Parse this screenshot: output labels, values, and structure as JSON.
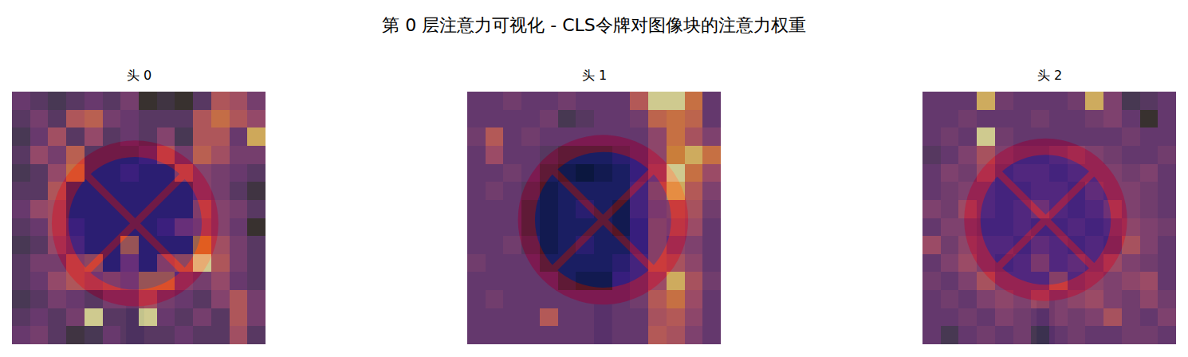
{
  "title": "第 0 层注意力可视化 - CLS令牌对图像块的注意力权重",
  "chart_data": [
    {
      "type": "heatmap",
      "title": "头 0",
      "tick_labels": false,
      "cells": [
        [
          0.35,
          0.3,
          0.25,
          0.3,
          0.35,
          0.3,
          0.4,
          0.15,
          0.2,
          0.15,
          0.3,
          0.6,
          0.55,
          0.4
        ],
        [
          0.3,
          0.4,
          0.3,
          0.6,
          0.65,
          0.4,
          0.35,
          0.3,
          0.3,
          0.3,
          0.6,
          0.7,
          0.6,
          0.5
        ],
        [
          0.25,
          0.35,
          0.55,
          0.3,
          0.5,
          0.3,
          0.35,
          0.3,
          0.45,
          0.25,
          0.6,
          0.6,
          0.35,
          0.85
        ],
        [
          0.3,
          0.5,
          0.4,
          0.65,
          0.3,
          0.3,
          0.3,
          0.35,
          0.6,
          0.4,
          0.65,
          0.55,
          0.4,
          0.4
        ],
        [
          0.25,
          0.3,
          0.5,
          0.7,
          0.3,
          0.3,
          0.35,
          0.3,
          0.3,
          0.6,
          0.45,
          0.4,
          0.35,
          0.3
        ],
        [
          0.3,
          0.3,
          0.6,
          0.3,
          0.3,
          0.3,
          0.3,
          0.3,
          0.3,
          0.3,
          0.45,
          0.4,
          0.3,
          0.2
        ],
        [
          0.35,
          0.5,
          0.55,
          0.3,
          0.3,
          0.3,
          0.3,
          0.3,
          0.3,
          0.3,
          0.6,
          0.45,
          0.4,
          0.3
        ],
        [
          0.3,
          0.35,
          0.55,
          0.35,
          0.3,
          0.3,
          0.3,
          0.3,
          0.35,
          0.5,
          0.55,
          0.45,
          0.35,
          0.15
        ],
        [
          0.25,
          0.3,
          0.5,
          0.4,
          0.3,
          0.3,
          0.7,
          0.3,
          0.3,
          0.3,
          0.75,
          0.55,
          0.4,
          0.3
        ],
        [
          0.3,
          0.4,
          0.4,
          0.6,
          0.65,
          0.3,
          0.5,
          0.3,
          0.6,
          0.65,
          0.9,
          0.6,
          0.4,
          0.3
        ],
        [
          0.3,
          0.35,
          0.5,
          0.6,
          0.55,
          0.6,
          0.55,
          0.7,
          0.7,
          0.45,
          0.4,
          0.5,
          0.35,
          0.3
        ],
        [
          0.25,
          0.3,
          0.4,
          0.35,
          0.3,
          0.4,
          0.4,
          0.55,
          0.4,
          0.35,
          0.3,
          0.45,
          0.6,
          0.4
        ],
        [
          0.3,
          0.35,
          0.3,
          0.4,
          0.9,
          0.3,
          0.3,
          0.9,
          0.35,
          0.3,
          0.4,
          0.3,
          0.6,
          0.4
        ],
        [
          0.35,
          0.4,
          0.3,
          0.2,
          0.25,
          0.35,
          0.3,
          0.3,
          0.3,
          0.35,
          0.3,
          0.3,
          0.55,
          0.3
        ]
      ]
    },
    {
      "type": "heatmap",
      "title": "头 1",
      "tick_labels": false,
      "cells": [
        [
          0.3,
          0.3,
          0.35,
          0.3,
          0.3,
          0.35,
          0.3,
          0.3,
          0.3,
          0.6,
          0.9,
          0.9,
          0.7,
          0.3
        ],
        [
          0.3,
          0.3,
          0.3,
          0.3,
          0.35,
          0.2,
          0.25,
          0.3,
          0.3,
          0.35,
          0.65,
          0.7,
          0.65,
          0.3
        ],
        [
          0.35,
          0.6,
          0.3,
          0.35,
          0.3,
          0.3,
          0.3,
          0.3,
          0.3,
          0.3,
          0.45,
          0.7,
          0.55,
          0.4
        ],
        [
          0.3,
          0.5,
          0.3,
          0.3,
          0.25,
          0.2,
          0.2,
          0.2,
          0.25,
          0.3,
          0.45,
          0.75,
          0.85,
          0.7
        ],
        [
          0.3,
          0.3,
          0.35,
          0.3,
          0.2,
          0.15,
          0.1,
          0.15,
          0.2,
          0.3,
          0.5,
          0.9,
          0.7,
          0.5
        ],
        [
          0.3,
          0.35,
          0.3,
          0.25,
          0.15,
          0.2,
          0.2,
          0.2,
          0.2,
          0.35,
          0.6,
          0.85,
          0.6,
          0.4
        ],
        [
          0.3,
          0.3,
          0.3,
          0.2,
          0.15,
          0.2,
          0.25,
          0.2,
          0.15,
          0.35,
          0.55,
          0.6,
          0.55,
          0.35
        ],
        [
          0.3,
          0.3,
          0.3,
          0.2,
          0.15,
          0.2,
          0.2,
          0.2,
          0.15,
          0.3,
          0.6,
          0.55,
          0.5,
          0.3
        ],
        [
          0.3,
          0.3,
          0.35,
          0.25,
          0.15,
          0.2,
          0.25,
          0.2,
          0.2,
          0.3,
          0.6,
          0.45,
          0.4,
          0.3
        ],
        [
          0.35,
          0.3,
          0.3,
          0.3,
          0.2,
          0.2,
          0.2,
          0.2,
          0.25,
          0.35,
          0.6,
          0.55,
          0.45,
          0.3
        ],
        [
          0.3,
          0.3,
          0.3,
          0.3,
          0.3,
          0.2,
          0.15,
          0.15,
          0.3,
          0.35,
          0.5,
          0.85,
          0.55,
          0.35
        ],
        [
          0.3,
          0.35,
          0.3,
          0.3,
          0.3,
          0.3,
          0.3,
          0.3,
          0.3,
          0.35,
          0.6,
          0.7,
          0.5,
          0.3
        ],
        [
          0.3,
          0.3,
          0.3,
          0.3,
          0.6,
          0.3,
          0.3,
          0.3,
          0.3,
          0.3,
          0.55,
          0.6,
          0.45,
          0.3
        ],
        [
          0.3,
          0.3,
          0.3,
          0.3,
          0.3,
          0.3,
          0.3,
          0.3,
          0.3,
          0.3,
          0.6,
          0.55,
          0.4,
          0.3
        ]
      ]
    },
    {
      "type": "heatmap",
      "title": "头 2",
      "tick_labels": false,
      "cells": [
        [
          0.3,
          0.3,
          0.3,
          0.85,
          0.35,
          0.3,
          0.3,
          0.3,
          0.35,
          0.85,
          0.4,
          0.2,
          0.25,
          0.3
        ],
        [
          0.3,
          0.3,
          0.35,
          0.3,
          0.3,
          0.3,
          0.35,
          0.3,
          0.3,
          0.35,
          0.4,
          0.3,
          0.1,
          0.3
        ],
        [
          0.3,
          0.35,
          0.3,
          0.9,
          0.35,
          0.3,
          0.3,
          0.3,
          0.3,
          0.3,
          0.3,
          0.35,
          0.3,
          0.3
        ],
        [
          0.25,
          0.3,
          0.4,
          0.55,
          0.4,
          0.35,
          0.35,
          0.4,
          0.45,
          0.4,
          0.35,
          0.3,
          0.3,
          0.35
        ],
        [
          0.3,
          0.4,
          0.35,
          0.5,
          0.35,
          0.4,
          0.4,
          0.35,
          0.4,
          0.4,
          0.4,
          0.35,
          0.4,
          0.3
        ],
        [
          0.3,
          0.35,
          0.4,
          0.4,
          0.35,
          0.35,
          0.4,
          0.4,
          0.35,
          0.45,
          0.4,
          0.4,
          0.35,
          0.3
        ],
        [
          0.4,
          0.35,
          0.5,
          0.4,
          0.35,
          0.4,
          0.5,
          0.4,
          0.35,
          0.4,
          0.5,
          0.4,
          0.35,
          0.3
        ],
        [
          0.3,
          0.4,
          0.4,
          0.35,
          0.35,
          0.4,
          0.35,
          0.35,
          0.4,
          0.35,
          0.4,
          0.45,
          0.4,
          0.35
        ],
        [
          0.5,
          0.35,
          0.45,
          0.4,
          0.4,
          0.35,
          0.45,
          0.4,
          0.35,
          0.4,
          0.35,
          0.55,
          0.4,
          0.3
        ],
        [
          0.3,
          0.4,
          0.5,
          0.4,
          0.35,
          0.4,
          0.55,
          0.4,
          0.45,
          0.4,
          0.5,
          0.4,
          0.35,
          0.3
        ],
        [
          0.35,
          0.3,
          0.4,
          0.55,
          0.4,
          0.4,
          0.4,
          0.6,
          0.4,
          0.45,
          0.4,
          0.45,
          0.5,
          0.3
        ],
        [
          0.3,
          0.35,
          0.3,
          0.4,
          0.45,
          0.4,
          0.5,
          0.4,
          0.45,
          0.5,
          0.4,
          0.35,
          0.45,
          0.35
        ],
        [
          0.3,
          0.3,
          0.35,
          0.3,
          0.4,
          0.35,
          0.3,
          0.4,
          0.35,
          0.4,
          0.55,
          0.35,
          0.3,
          0.4
        ],
        [
          0.3,
          0.2,
          0.3,
          0.35,
          0.3,
          0.35,
          0.2,
          0.3,
          0.35,
          0.3,
          0.3,
          0.35,
          0.35,
          0.3
        ]
      ]
    }
  ]
}
